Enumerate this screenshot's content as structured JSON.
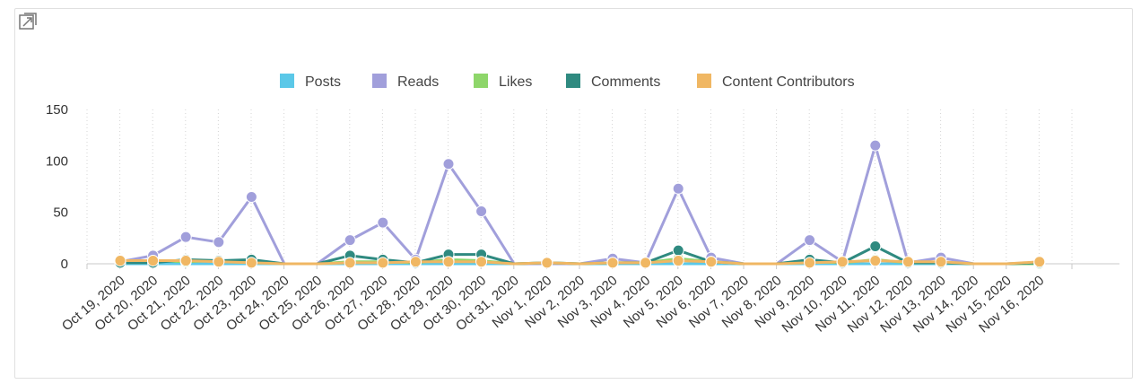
{
  "chart_data": {
    "type": "line",
    "title": "",
    "xlabel": "",
    "ylabel": "",
    "ylim": [
      0,
      150
    ],
    "yticks": [
      0,
      50,
      100,
      150
    ],
    "legend_position": "top-center",
    "grid": "vertical-dotted",
    "categories": [
      "Oct 19, 2020",
      "Oct 20, 2020",
      "Oct 21, 2020",
      "Oct 22, 2020",
      "Oct 23, 2020",
      "Oct 24, 2020",
      "Oct 25, 2020",
      "Oct 26, 2020",
      "Oct 27, 2020",
      "Oct 28, 2020",
      "Oct 29, 2020",
      "Oct 30, 2020",
      "Oct 31, 2020",
      "Nov 1, 2020",
      "Nov 2, 2020",
      "Nov 3, 2020",
      "Nov 4, 2020",
      "Nov 5, 2020",
      "Nov 6, 2020",
      "Nov 7, 2020",
      "Nov 8, 2020",
      "Nov 9, 2020",
      "Nov 10, 2020",
      "Nov 11, 2020",
      "Nov 12, 2020",
      "Nov 13, 2020",
      "Nov 14, 2020",
      "Nov 15, 2020",
      "Nov 16, 2020"
    ],
    "series": [
      {
        "name": "Posts",
        "color": "#5bc8e8",
        "marker": false,
        "values": [
          0,
          0,
          0,
          0,
          0,
          0,
          0,
          0,
          0,
          0,
          0,
          0,
          0,
          0,
          0,
          0,
          0,
          0,
          0,
          0,
          0,
          0,
          0,
          0,
          0,
          0,
          0,
          0,
          0
        ]
      },
      {
        "name": "Reads",
        "color": "#a19fdb",
        "values": [
          2,
          8,
          26,
          21,
          65,
          0,
          0,
          23,
          40,
          4,
          97,
          51,
          0,
          0,
          0,
          5,
          1,
          73,
          6,
          0,
          0,
          23,
          2,
          115,
          1,
          6,
          0,
          0,
          1
        ],
        "markers": [
          true,
          true,
          true,
          true,
          true,
          false,
          false,
          true,
          true,
          true,
          true,
          true,
          false,
          false,
          false,
          true,
          true,
          true,
          true,
          false,
          false,
          true,
          true,
          true,
          true,
          true,
          false,
          false,
          true
        ]
      },
      {
        "name": "Likes",
        "color": "#8ed66a",
        "values": [
          1,
          3,
          2,
          3,
          2,
          0,
          0,
          2,
          2,
          1,
          4,
          3,
          0,
          1,
          0,
          1,
          1,
          5,
          2,
          0,
          0,
          2,
          1,
          4,
          1,
          1,
          0,
          0,
          0
        ],
        "markers": [
          true,
          true,
          true,
          true,
          true,
          false,
          false,
          true,
          true,
          true,
          true,
          true,
          false,
          true,
          false,
          true,
          true,
          true,
          true,
          false,
          false,
          true,
          true,
          true,
          true,
          true,
          false,
          false,
          true
        ]
      },
      {
        "name": "Comments",
        "color": "#2f8a80",
        "values": [
          1,
          1,
          4,
          3,
          4,
          0,
          0,
          8,
          4,
          1,
          9,
          9,
          0,
          1,
          0,
          1,
          1,
          13,
          2,
          0,
          0,
          4,
          1,
          17,
          1,
          1,
          0,
          0,
          1
        ],
        "markers": [
          true,
          true,
          true,
          true,
          true,
          false,
          false,
          true,
          true,
          true,
          true,
          true,
          false,
          true,
          false,
          true,
          true,
          true,
          true,
          false,
          false,
          true,
          true,
          true,
          true,
          true,
          false,
          false,
          true
        ]
      },
      {
        "name": "Content Contributors",
        "color": "#f0b763",
        "values": [
          3,
          3,
          3,
          2,
          1,
          0,
          0,
          1,
          1,
          2,
          2,
          2,
          0,
          1,
          0,
          1,
          1,
          3,
          2,
          0,
          0,
          1,
          2,
          3,
          2,
          2,
          0,
          0,
          2
        ],
        "markers": [
          true,
          true,
          true,
          true,
          true,
          false,
          false,
          true,
          true,
          true,
          true,
          true,
          false,
          true,
          false,
          true,
          true,
          true,
          true,
          false,
          false,
          true,
          true,
          true,
          true,
          true,
          false,
          false,
          true
        ]
      }
    ]
  },
  "toolbar": {
    "expand_icon": "expand-icon"
  }
}
